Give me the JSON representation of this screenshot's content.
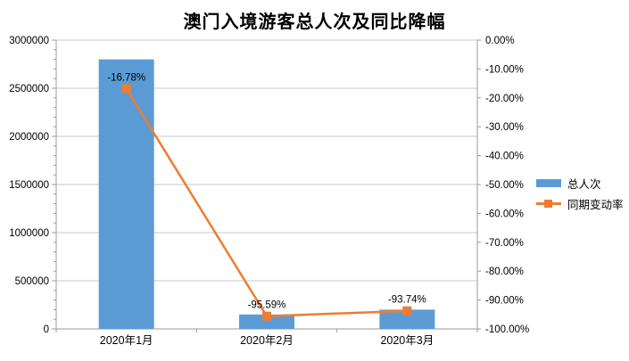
{
  "chart_data": {
    "type": "bar",
    "combo": "bar+line dual axis",
    "title": "澳门入境游客总人次及同比降幅",
    "categories": [
      "2020年1月",
      "2020年2月",
      "2020年3月"
    ],
    "series": [
      {
        "name": "总人次",
        "type": "bar",
        "axis": "left",
        "color": "#5B9BD5",
        "values": [
          2800000,
          150000,
          200000
        ]
      },
      {
        "name": "同期变动率",
        "type": "line",
        "axis": "right",
        "color": "#ED7D31",
        "values": [
          -16.78,
          -95.59,
          -93.74
        ],
        "data_labels": [
          "-16.78%",
          "-95.59%",
          "-93.74%"
        ]
      }
    ],
    "left_axis": {
      "min": 0,
      "max": 3000000,
      "tick_labels": [
        "3000000",
        "2500000",
        "2000000",
        "1500000",
        "1000000",
        "500000",
        "0"
      ]
    },
    "right_axis": {
      "min": -100,
      "max": 0,
      "tick_labels": [
        "0.00%",
        "-10.00%",
        "-20.00%",
        "-30.00%",
        "-40.00%",
        "-50.00%",
        "-60.00%",
        "-70.00%",
        "-80.00%",
        "-90.00%",
        "-100.00%"
      ]
    },
    "legend": {
      "position": "right",
      "items": [
        "总人次",
        "同期变动率"
      ]
    },
    "grid": "horizontal major gridlines on",
    "colors": {
      "bar": "#5B9BD5",
      "line": "#ED7D31",
      "gridline": "#C9C9C9",
      "axis": "#9B9B9B",
      "text": "#000000"
    }
  }
}
